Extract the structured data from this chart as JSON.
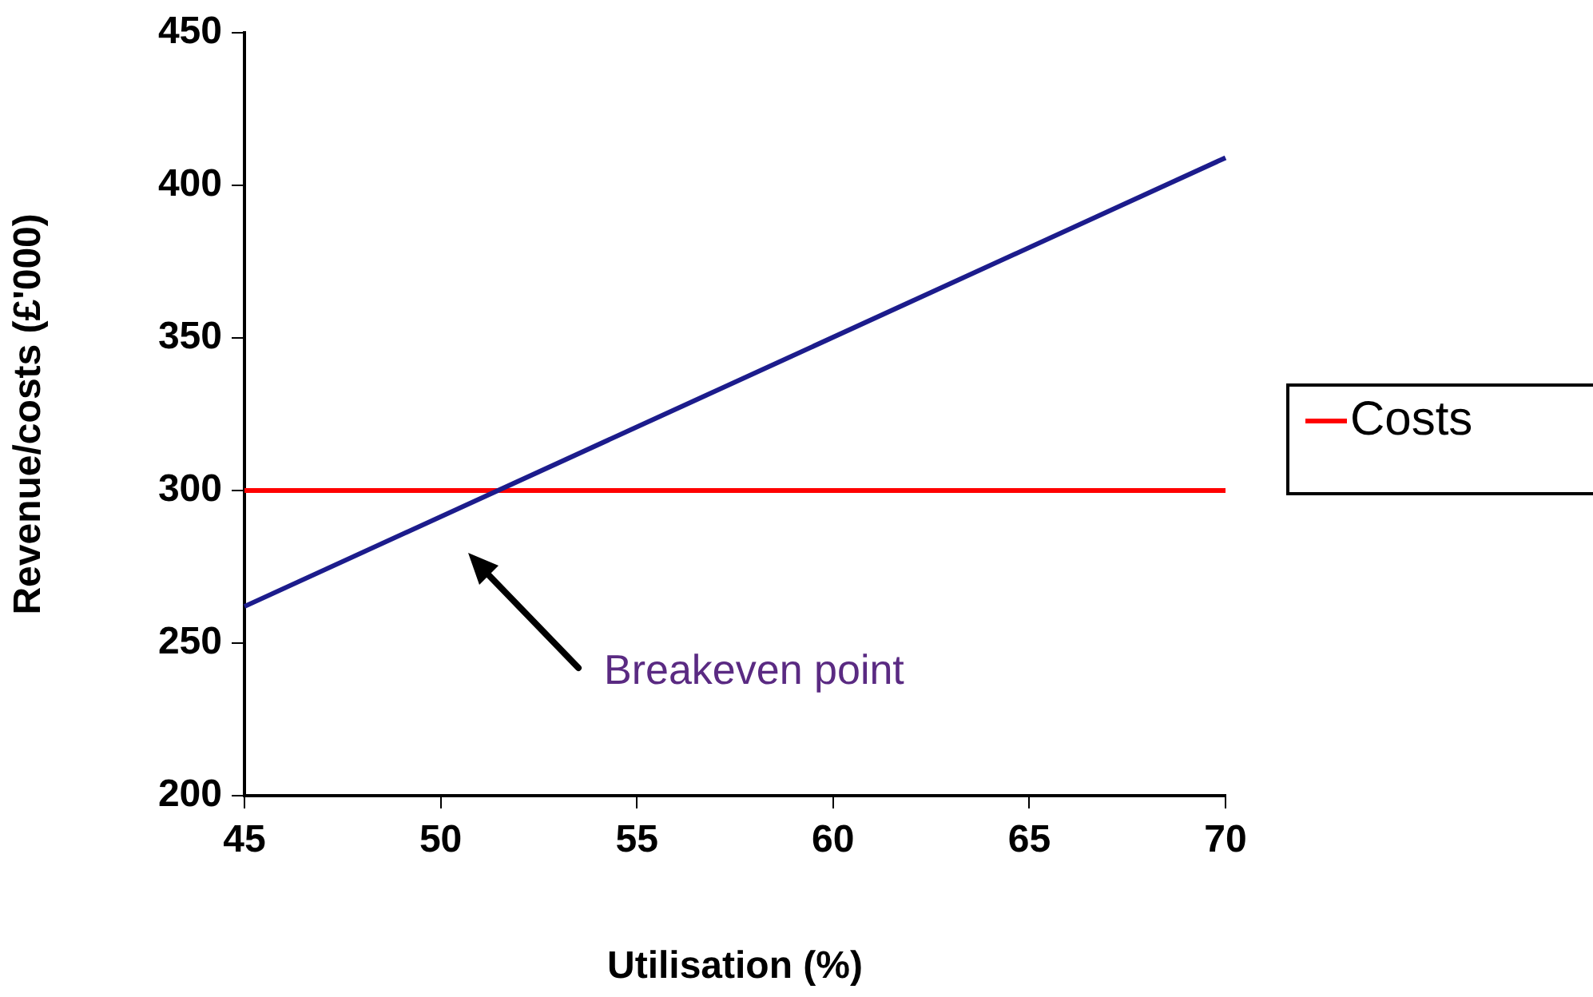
{
  "chart_data": {
    "type": "line",
    "xlabel": "Utilisation (%)",
    "ylabel": "Revenue/costs (£'000)",
    "xlim": [
      45,
      70
    ],
    "xticks": [
      45,
      50,
      55,
      60,
      65,
      70
    ],
    "ylim": [
      200,
      450
    ],
    "yticks": [
      200,
      250,
      300,
      350,
      400,
      450
    ],
    "grid": false,
    "legend": "right",
    "marker": "none",
    "line_style": "solid",
    "x": [
      45,
      70
    ],
    "series": [
      {
        "color": "#1c1c8c",
        "values": [
          262,
          409
        ]
      },
      {
        "name": "Costs",
        "color": "#ff0000",
        "values": [
          300,
          300
        ]
      }
    ],
    "annotations": [
      "Breakeven point"
    ]
  }
}
